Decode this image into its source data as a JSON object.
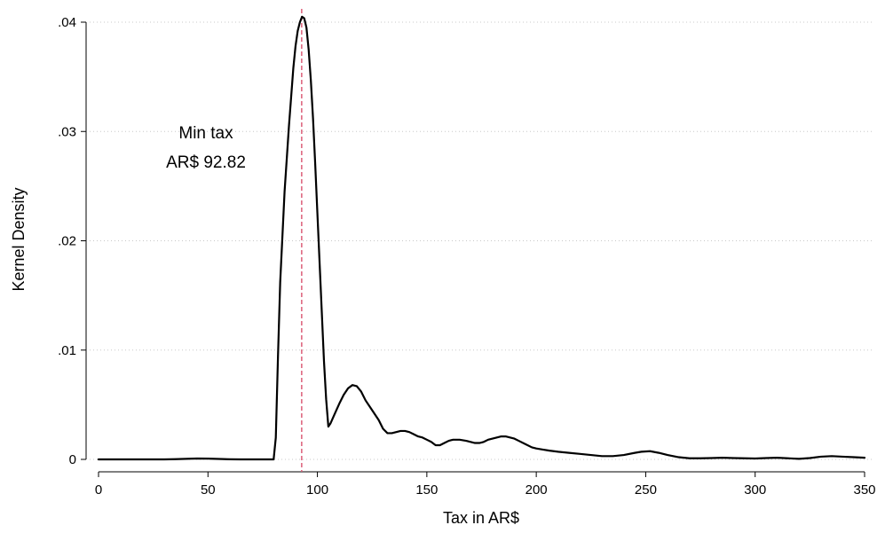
{
  "chart_data": {
    "type": "line",
    "xlabel": "Tax in AR$",
    "ylabel": "Kernel Density",
    "xlim": [
      0,
      350
    ],
    "ylim": [
      0,
      0.04
    ],
    "xticks": [
      0,
      50,
      100,
      150,
      200,
      250,
      300,
      350
    ],
    "xtick_labels": [
      "0",
      "50",
      "100",
      "150",
      "200",
      "250",
      "300",
      "350"
    ],
    "yticks": [
      0,
      0.01,
      0.02,
      0.03,
      0.04
    ],
    "ytick_labels": [
      "0",
      ".01",
      ".02",
      ".03",
      ".04"
    ],
    "grid": true,
    "legend": "none",
    "annotation": {
      "line1": "Min tax",
      "line2": "AR$ 92.82"
    },
    "reference_line": {
      "x": 92.82,
      "color": "#d9536f",
      "style": "dashed"
    },
    "series": [
      {
        "color": "#000000",
        "x": [
          0,
          10,
          20,
          30,
          35,
          40,
          45,
          50,
          55,
          60,
          65,
          70,
          75,
          80,
          81,
          82,
          83,
          85,
          87,
          89,
          90,
          91,
          92,
          93,
          94,
          95,
          96,
          97,
          98,
          99,
          100,
          101,
          102,
          103,
          104,
          105,
          106,
          108,
          110,
          112,
          114,
          116,
          118,
          120,
          122,
          125,
          128,
          130,
          132,
          134,
          136,
          138,
          140,
          142,
          144,
          146,
          148,
          150,
          152,
          154,
          156,
          158,
          160,
          162,
          165,
          168,
          170,
          172,
          174,
          176,
          178,
          180,
          182,
          184,
          186,
          188,
          190,
          192,
          195,
          198,
          200,
          203,
          206,
          210,
          215,
          220,
          225,
          230,
          235,
          240,
          245,
          248,
          252,
          256,
          260,
          265,
          270,
          275,
          280,
          285,
          290,
          295,
          300,
          305,
          310,
          315,
          320,
          325,
          330,
          335,
          340,
          345,
          350
        ],
        "y": [
          0,
          0,
          0,
          0,
          2e-05,
          5e-05,
          8e-05,
          7e-05,
          4e-05,
          1e-05,
          0,
          0,
          0,
          0,
          0.002,
          0.0095,
          0.0162,
          0.0245,
          0.0305,
          0.0358,
          0.0378,
          0.0392,
          0.04,
          0.0405,
          0.04035,
          0.0395,
          0.0375,
          0.0347,
          0.0312,
          0.027,
          0.0225,
          0.018,
          0.0135,
          0.009,
          0.0055,
          0.003,
          0.0033,
          0.0042,
          0.0051,
          0.0059,
          0.0065,
          0.0068,
          0.0067,
          0.0062,
          0.0054,
          0.0045,
          0.0036,
          0.0028,
          0.0024,
          0.0024,
          0.0025,
          0.0026,
          0.0026,
          0.0025,
          0.0023,
          0.0021,
          0.002,
          0.0018,
          0.0016,
          0.0013,
          0.0013,
          0.0015,
          0.0017,
          0.0018,
          0.0018,
          0.0017,
          0.0016,
          0.0015,
          0.0015,
          0.0016,
          0.0018,
          0.0019,
          0.002,
          0.0021,
          0.0021,
          0.002,
          0.0019,
          0.0017,
          0.0014,
          0.0011,
          0.001,
          0.0009,
          0.0008,
          0.0007,
          0.0006,
          0.0005,
          0.0004,
          0.0003,
          0.0003,
          0.0004,
          0.0006,
          0.0007,
          0.00075,
          0.0006,
          0.0004,
          0.0002,
          0.0001,
          0.0001,
          0.00012,
          0.00015,
          0.00012,
          0.0001,
          8e-05,
          0.00012,
          0.00015,
          0.0001,
          5e-05,
          0.00012,
          0.00025,
          0.0003,
          0.00025,
          0.0002,
          0.00015
        ]
      }
    ]
  }
}
